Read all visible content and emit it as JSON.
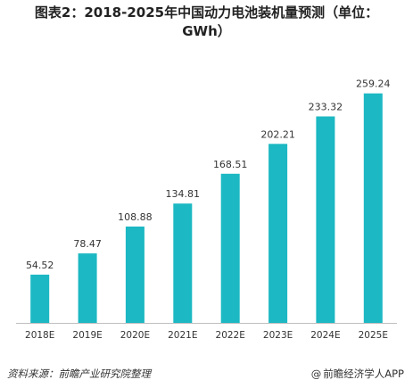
{
  "title_line1": "图表2：2018-2025年中国动力电池装机量预测（单位：",
  "title_line2": "GWh）",
  "source": "资料来源：前瞻产业研究院整理",
  "brand": "前瞻经济学人APP",
  "brand_symbol": "@",
  "colors": {
    "bar": "#1cb8c3",
    "axis": "#bfbfbf",
    "text": "#333333"
  },
  "chart_data": {
    "type": "bar",
    "title": "图表2：2018-2025年中国动力电池装机量预测（单位：GWh）",
    "categories": [
      "2018E",
      "2019E",
      "2020E",
      "2021E",
      "2022E",
      "2023E",
      "2024E",
      "2025E"
    ],
    "values": [
      54.52,
      78.47,
      108.88,
      134.81,
      168.51,
      202.21,
      233.32,
      259.24
    ],
    "value_labels": [
      "54.52",
      "78.47",
      "108.88",
      "134.81",
      "168.51",
      "202.21",
      "233.32",
      "259.24"
    ],
    "xlabel": "",
    "ylabel": "",
    "ylim": [
      0,
      262
    ],
    "grid": false,
    "legend": "none"
  }
}
